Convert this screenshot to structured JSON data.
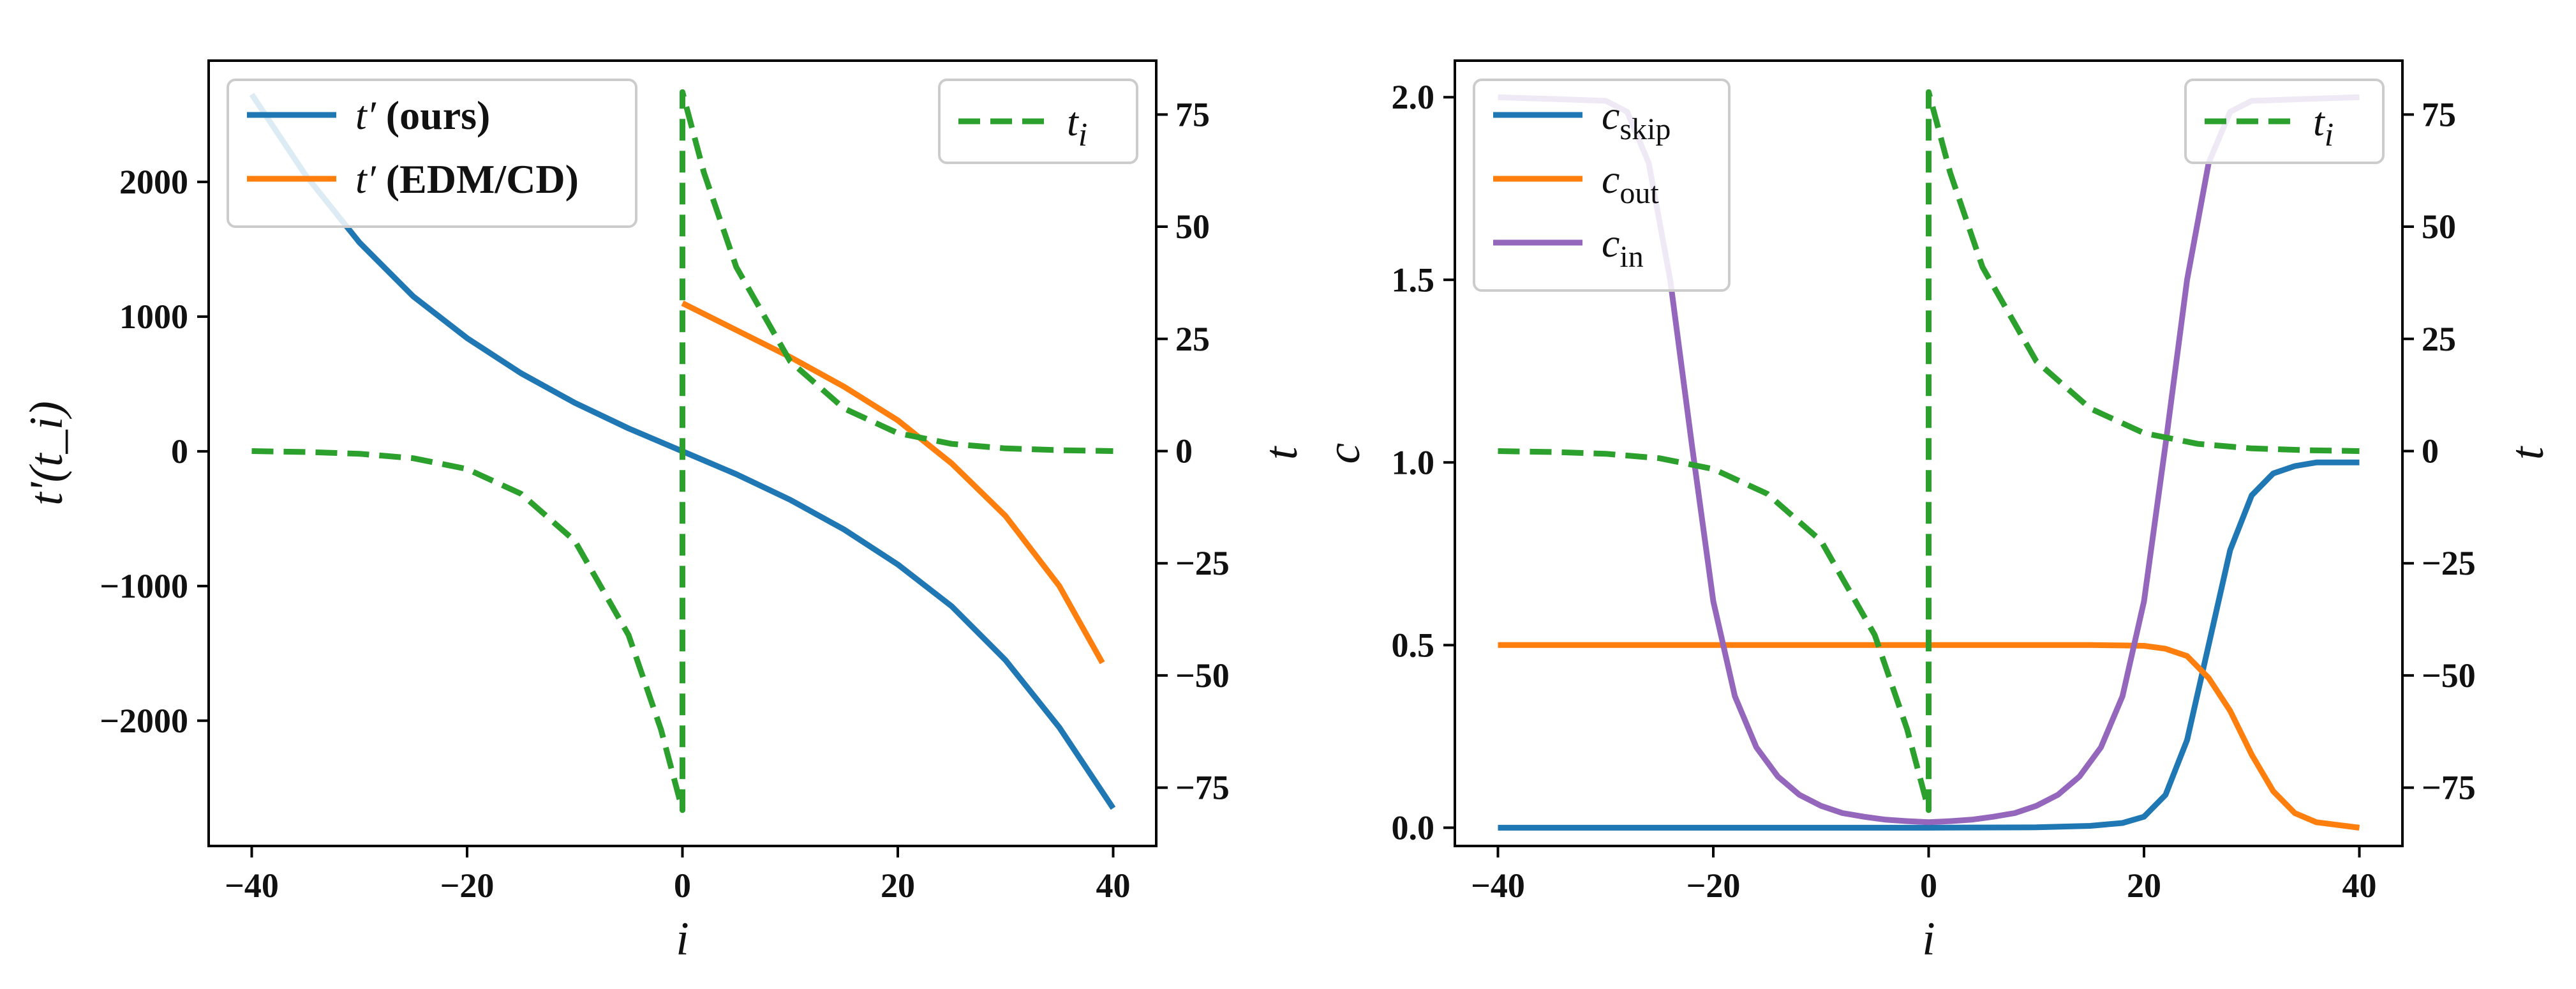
{
  "colors": {
    "blue": "#1f77b4",
    "orange": "#ff7f0e",
    "green": "#2ca02c",
    "purple": "#9467bd"
  },
  "chart_data": [
    {
      "type": "line",
      "xlabel": "i",
      "ylabel_left": "t'(t_i)",
      "ylabel_right": "t",
      "xlim": [
        -44,
        44
      ],
      "ylim_left": [
        -2930,
        2900
      ],
      "ylim_right": [
        -88,
        87
      ],
      "xticks": [
        -40,
        -20,
        0,
        20,
        40
      ],
      "yticks_left": [
        -2000,
        -1000,
        0,
        1000,
        2000
      ],
      "yticks_right": [
        -75,
        -50,
        -25,
        0,
        25,
        50,
        75
      ],
      "xtick_labels": [
        "−40",
        "−20",
        "0",
        "20",
        "40"
      ],
      "ytick_labels_left": [
        "−2000",
        "−1000",
        "0",
        "1000",
        "2000"
      ],
      "ytick_labels_right": [
        "−75",
        "−50",
        "−25",
        "0",
        "25",
        "50",
        "75"
      ],
      "legend_left": {
        "position": "top-left",
        "entries": [
          {
            "sym": "t′",
            "rest": " (ours)"
          },
          {
            "sym": "t′",
            "rest": " (EDM/CD)"
          }
        ]
      },
      "legend_right": {
        "position": "top-right",
        "entries": [
          {
            "sym": "t",
            "sub": "i"
          }
        ]
      },
      "series": [
        {
          "name": "t' (ours)",
          "axis": "left",
          "color": "blue",
          "style": "solid",
          "x": [
            -40,
            -35,
            -30,
            -25,
            -20,
            -15,
            -10,
            -5,
            0,
            5,
            10,
            15,
            20,
            25,
            30,
            35,
            40
          ],
          "y": [
            2650,
            2050,
            1550,
            1150,
            840,
            580,
            360,
            170,
            0,
            -170,
            -360,
            -580,
            -840,
            -1150,
            -1550,
            -2050,
            -2650
          ]
        },
        {
          "name": "t' (EDM/CD)",
          "axis": "left",
          "color": "orange",
          "style": "solid",
          "x": [
            0,
            5,
            10,
            15,
            20,
            25,
            30,
            35,
            39
          ],
          "y": [
            1100,
            900,
            700,
            480,
            230,
            -90,
            -480,
            -1000,
            -1570
          ]
        },
        {
          "name": "t_i",
          "axis": "right",
          "color": "green",
          "style": "dashed",
          "x": [
            -40,
            -35,
            -30,
            -25,
            -20,
            -15,
            -10,
            -5,
            -2,
            0,
            0,
            2,
            5,
            10,
            15,
            20,
            25,
            30,
            35,
            40
          ],
          "y": [
            0,
            -0.2,
            -0.6,
            -1.6,
            -4,
            -9.5,
            -20,
            -41,
            -62,
            -80,
            80,
            62,
            41,
            20,
            9.5,
            4,
            1.6,
            0.6,
            0.2,
            0
          ]
        }
      ]
    },
    {
      "type": "line",
      "xlabel": "i",
      "ylabel_left": "c",
      "ylabel_right": "t",
      "xlim": [
        -44,
        44
      ],
      "ylim_left": [
        -0.05,
        2.1
      ],
      "ylim_right": [
        -88,
        87
      ],
      "xticks": [
        -40,
        -20,
        0,
        20,
        40
      ],
      "yticks_left": [
        0,
        0.5,
        1,
        1.5,
        2
      ],
      "yticks_right": [
        -75,
        -50,
        -25,
        0,
        25,
        50,
        75
      ],
      "xtick_labels": [
        "−40",
        "−20",
        "0",
        "20",
        "40"
      ],
      "ytick_labels_left": [
        "0.0",
        "0.5",
        "1.0",
        "1.5",
        "2.0"
      ],
      "ytick_labels_right": [
        "−75",
        "−50",
        "−25",
        "0",
        "25",
        "50",
        "75"
      ],
      "legend_left": {
        "position": "top-left",
        "entries": [
          {
            "sym": "c",
            "sub": "skip"
          },
          {
            "sym": "c",
            "sub": "out"
          },
          {
            "sym": "c",
            "sub": "in"
          }
        ]
      },
      "legend_right": {
        "position": "top-right",
        "entries": [
          {
            "sym": "t",
            "sub": "i"
          }
        ]
      },
      "series": [
        {
          "name": "c_skip",
          "axis": "left",
          "color": "blue",
          "style": "solid",
          "x": [
            -40,
            -20,
            0,
            10,
            15,
            18,
            20,
            22,
            24,
            26,
            28,
            30,
            32,
            34,
            36,
            40
          ],
          "y": [
            0,
            0,
            0,
            0.001,
            0.005,
            0.013,
            0.03,
            0.09,
            0.24,
            0.5,
            0.76,
            0.91,
            0.97,
            0.99,
            1,
            1
          ]
        },
        {
          "name": "c_out",
          "axis": "left",
          "color": "orange",
          "style": "solid",
          "x": [
            -40,
            -20,
            0,
            10,
            15,
            18,
            20,
            22,
            24,
            26,
            28,
            30,
            32,
            34,
            36,
            40
          ],
          "y": [
            0.5,
            0.5,
            0.5,
            0.5,
            0.5,
            0.499,
            0.498,
            0.49,
            0.47,
            0.41,
            0.32,
            0.2,
            0.1,
            0.04,
            0.015,
            0
          ]
        },
        {
          "name": "c_in",
          "axis": "left",
          "color": "purple",
          "style": "solid",
          "x": [
            -40,
            -30,
            -28,
            -26,
            -24,
            -22,
            -20,
            -18,
            -16,
            -14,
            -12,
            -10,
            -8,
            -6,
            -4,
            -2,
            0,
            2,
            4,
            6,
            8,
            10,
            12,
            14,
            16,
            18,
            20,
            22,
            24,
            26,
            28,
            30,
            40
          ],
          "y": [
            2,
            1.99,
            1.96,
            1.82,
            1.5,
            1.05,
            0.62,
            0.36,
            0.22,
            0.14,
            0.09,
            0.06,
            0.04,
            0.03,
            0.022,
            0.018,
            0.015,
            0.018,
            0.022,
            0.03,
            0.04,
            0.06,
            0.09,
            0.14,
            0.22,
            0.36,
            0.62,
            1.05,
            1.5,
            1.82,
            1.96,
            1.99,
            2
          ]
        },
        {
          "name": "t_i",
          "axis": "right",
          "color": "green",
          "style": "dashed",
          "x": [
            -40,
            -35,
            -30,
            -25,
            -20,
            -15,
            -10,
            -5,
            -2,
            0,
            0,
            2,
            5,
            10,
            15,
            20,
            25,
            30,
            35,
            40
          ],
          "y": [
            0,
            -0.2,
            -0.6,
            -1.6,
            -4,
            -9.5,
            -20,
            -41,
            -62,
            -80,
            80,
            62,
            41,
            20,
            9.5,
            4,
            1.6,
            0.6,
            0.2,
            0
          ]
        }
      ]
    }
  ]
}
